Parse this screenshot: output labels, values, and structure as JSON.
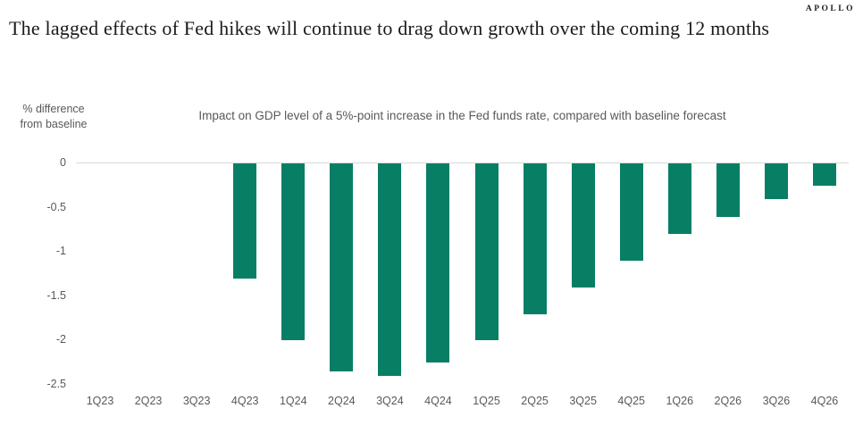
{
  "brand": "APOLLO",
  "page_title": "The lagged effects of Fed hikes will continue to drag down growth over the coming 12 months",
  "chart_data": {
    "type": "bar",
    "title": "Impact on GDP level of a 5%-point increase in the Fed funds rate, compared with baseline forecast",
    "ylabel_lines": [
      "% difference",
      "from baseline"
    ],
    "xlabel": "",
    "categories": [
      "1Q23",
      "2Q23",
      "3Q23",
      "4Q23",
      "1Q24",
      "2Q24",
      "3Q24",
      "4Q24",
      "1Q25",
      "2Q25",
      "3Q25",
      "4Q25",
      "1Q26",
      "2Q26",
      "3Q26",
      "4Q26"
    ],
    "values": [
      0,
      0,
      0,
      -1.3,
      -2.0,
      -2.35,
      -2.4,
      -2.25,
      -2.0,
      -1.7,
      -1.4,
      -1.1,
      -0.8,
      -0.6,
      -0.4,
      -0.25
    ],
    "ylim": [
      -2.5,
      0
    ],
    "yticks": [
      0,
      -0.5,
      -1,
      -1.5,
      -2,
      -2.5
    ],
    "ytick_labels": [
      "0",
      "-0.5",
      "-1",
      "-1.5",
      "-2",
      "-2.5"
    ],
    "grid": false,
    "legend": "none",
    "bar_color": "#087f64",
    "axis_line_color": "#d9d9d9",
    "text_color": "#595959"
  }
}
